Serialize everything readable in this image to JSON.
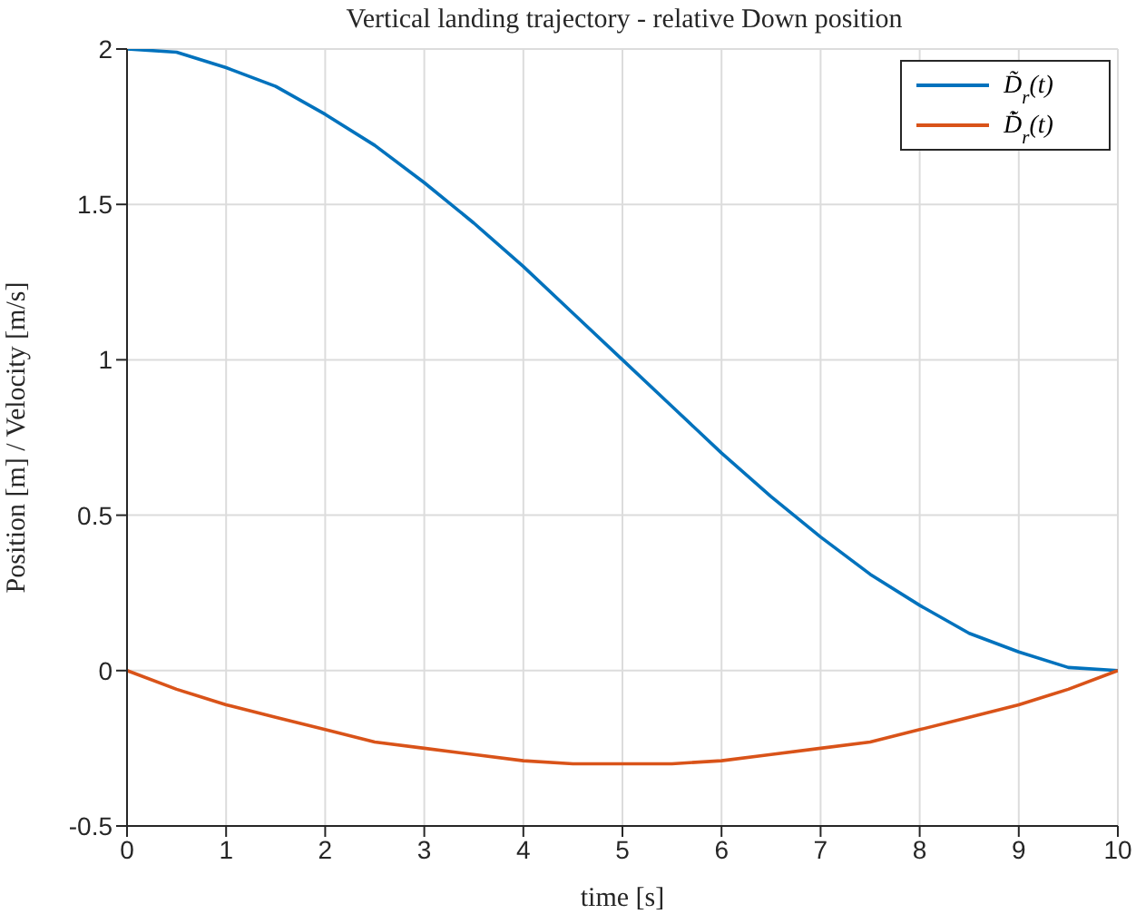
{
  "chart_data": {
    "type": "line",
    "title": "Vertical landing trajectory - relative Down position",
    "xlabel": "time [s]",
    "ylabel": "Position [m] / Velocity [m/s]",
    "x": [
      0,
      0.5,
      1,
      1.5,
      2,
      2.5,
      3,
      3.5,
      4,
      4.5,
      5,
      5.5,
      6,
      6.5,
      7,
      7.5,
      8,
      8.5,
      9,
      9.5,
      10
    ],
    "series": [
      {
        "name": "D̃$_{r}$(t)",
        "color": "#0072bd",
        "values": [
          2,
          1.99,
          1.94,
          1.88,
          1.79,
          1.69,
          1.57,
          1.44,
          1.3,
          1.15,
          1,
          0.85,
          0.7,
          0.56,
          0.43,
          0.31,
          0.21,
          0.12,
          0.06,
          0.01,
          0
        ]
      },
      {
        "name": "D̃̇$_{r}$(t)",
        "color": "#d95319",
        "values": [
          0,
          -0.06,
          -0.11,
          -0.15,
          -0.19,
          -0.23,
          -0.25,
          -0.27,
          -0.29,
          -0.3,
          -0.3,
          -0.3,
          -0.29,
          -0.27,
          -0.25,
          -0.23,
          -0.19,
          -0.15,
          -0.11,
          -0.06,
          0
        ]
      }
    ],
    "xlim": [
      0,
      10
    ],
    "xticks": [
      0,
      1,
      2,
      3,
      4,
      5,
      6,
      7,
      8,
      9,
      10
    ],
    "ylim": [
      -0.5,
      2
    ],
    "yticks": [
      -0.5,
      0,
      0.5,
      1,
      1.5,
      2
    ],
    "grid": true,
    "legend": "top right",
    "marker": "none",
    "line_style": "solid"
  }
}
